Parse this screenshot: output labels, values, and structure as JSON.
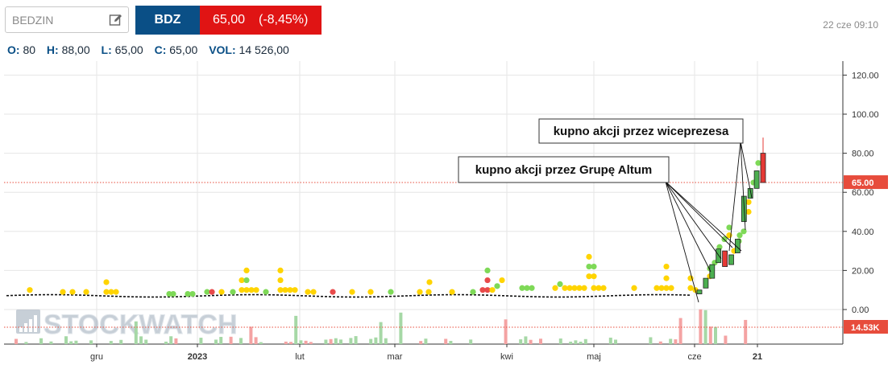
{
  "header": {
    "search_value": "BEDZIN",
    "ticker": "BDZ",
    "price": "65,00",
    "change": "(-8,45%)",
    "timestamp": "22 cze 09:10",
    "colors": {
      "ticker_bg": "#0a4f86",
      "price_bg": "#e01414"
    }
  },
  "ohlc": {
    "open_label": "O:",
    "open": "80",
    "high_label": "H:",
    "high": "88,00",
    "low_label": "L:",
    "low": "65,00",
    "close_label": "C:",
    "close": "65,00",
    "volume_label": "VOL:",
    "volume": "14 526,00"
  },
  "chart_data": {
    "type": "candlestick",
    "watermark": "STOCKWATCH",
    "y_ticks": [
      "120.00",
      "100.00",
      "80.00",
      "60.00",
      "40.00",
      "20.00",
      "0.00"
    ],
    "y_tick_values": [
      120,
      100,
      80,
      60,
      40,
      20,
      0
    ],
    "ylim": [
      -18,
      125
    ],
    "x_labels": [
      "gru",
      "2023",
      "lut",
      "mar",
      "kwi",
      "maj",
      "cze",
      "21"
    ],
    "x_label_bold": [
      false,
      true,
      false,
      false,
      false,
      false,
      false,
      true
    ],
    "last_price_label": "65.00",
    "last_price": 65,
    "volume_label": "14.53K",
    "grid": true,
    "annotations": [
      {
        "text": "kupno akcji przez wiceprezesa"
      },
      {
        "text": "kupno akcji przez Grupę Altum"
      }
    ],
    "base_price": 7,
    "rally_candles": [
      {
        "o": 8,
        "c": 10,
        "color": "green"
      },
      {
        "o": 11,
        "c": 16,
        "color": "green"
      },
      {
        "o": 16,
        "c": 23,
        "color": "green"
      },
      {
        "o": 24,
        "c": 31,
        "color": "green"
      },
      {
        "o": 30,
        "c": 22,
        "color": "red"
      },
      {
        "o": 23,
        "c": 28,
        "color": "green"
      },
      {
        "o": 29,
        "c": 36,
        "color": "green"
      },
      {
        "o": 45,
        "c": 58,
        "color": "green"
      },
      {
        "o": 57,
        "c": 62,
        "color": "green"
      },
      {
        "o": 62,
        "c": 71,
        "color": "green"
      },
      {
        "o": 80,
        "c": 65,
        "h": 88,
        "l": 65,
        "color": "red"
      }
    ],
    "colors": {
      "up": "#4caf50",
      "down": "#e53935",
      "dot_yellow": "#ffd400",
      "dot_green": "#7ed957",
      "dot_red": "#e84a4a",
      "price_line": "#e74c3c",
      "vol_up": "#a6d8a6",
      "vol_down": "#f4a3a3"
    }
  }
}
